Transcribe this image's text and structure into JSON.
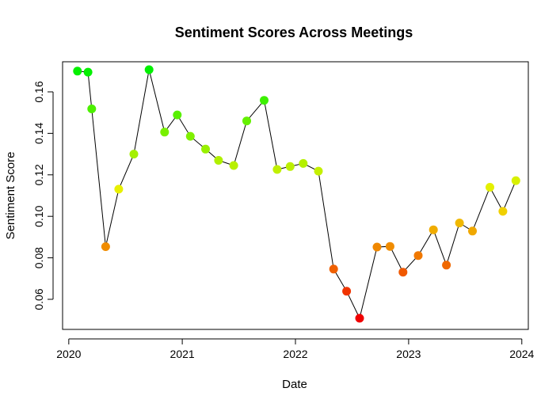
{
  "chart_data": {
    "type": "scatter",
    "title": "Sentiment Scores Across Meetings",
    "xlabel": "Date",
    "ylabel": "Sentiment Score",
    "x_ticks": [
      "2020",
      "2021",
      "2022",
      "2023",
      "2024"
    ],
    "y_ticks": [
      "0.06",
      "0.08",
      "0.10",
      "0.12",
      "0.14",
      "0.16"
    ],
    "xlim": [
      "2019-12-12",
      "2024-01-22"
    ],
    "ylim": [
      0.0455,
      0.1745
    ],
    "grid": false,
    "legend": "none",
    "connected_by_line": true,
    "colors": {
      "high": "#00ee00",
      "low": "#ee0000",
      "line": "#000000",
      "axis": "#000000"
    },
    "series": [
      {
        "x": [
          "2020-01-29",
          "2020-03-03",
          "2020-03-15",
          "2020-04-29",
          "2020-06-10",
          "2020-07-29",
          "2020-09-16",
          "2020-11-05",
          "2020-12-16",
          "2021-01-27",
          "2021-03-17",
          "2021-04-28",
          "2021-06-16",
          "2021-07-28",
          "2021-09-22",
          "2021-11-03",
          "2021-12-15",
          "2022-01-26",
          "2022-03-16",
          "2022-05-04",
          "2022-06-15",
          "2022-07-27",
          "2022-09-21",
          "2022-11-02",
          "2022-12-14",
          "2023-02-01",
          "2023-03-22",
          "2023-05-03",
          "2023-06-14",
          "2023-07-26",
          "2023-09-20",
          "2023-11-01",
          "2023-12-13"
        ],
        "y": [
          0.17,
          0.1695,
          0.1518,
          0.0854,
          0.1131,
          0.13,
          0.1707,
          0.1406,
          0.1489,
          0.1386,
          0.1324,
          0.127,
          0.1245,
          0.146,
          0.1559,
          0.1226,
          0.124,
          0.1255,
          0.1218,
          0.0746,
          0.0639,
          0.0509,
          0.0852,
          0.0855,
          0.0731,
          0.0811,
          0.0935,
          0.0765,
          0.0968,
          0.0929,
          0.114,
          0.1024,
          0.1172
        ]
      }
    ]
  }
}
